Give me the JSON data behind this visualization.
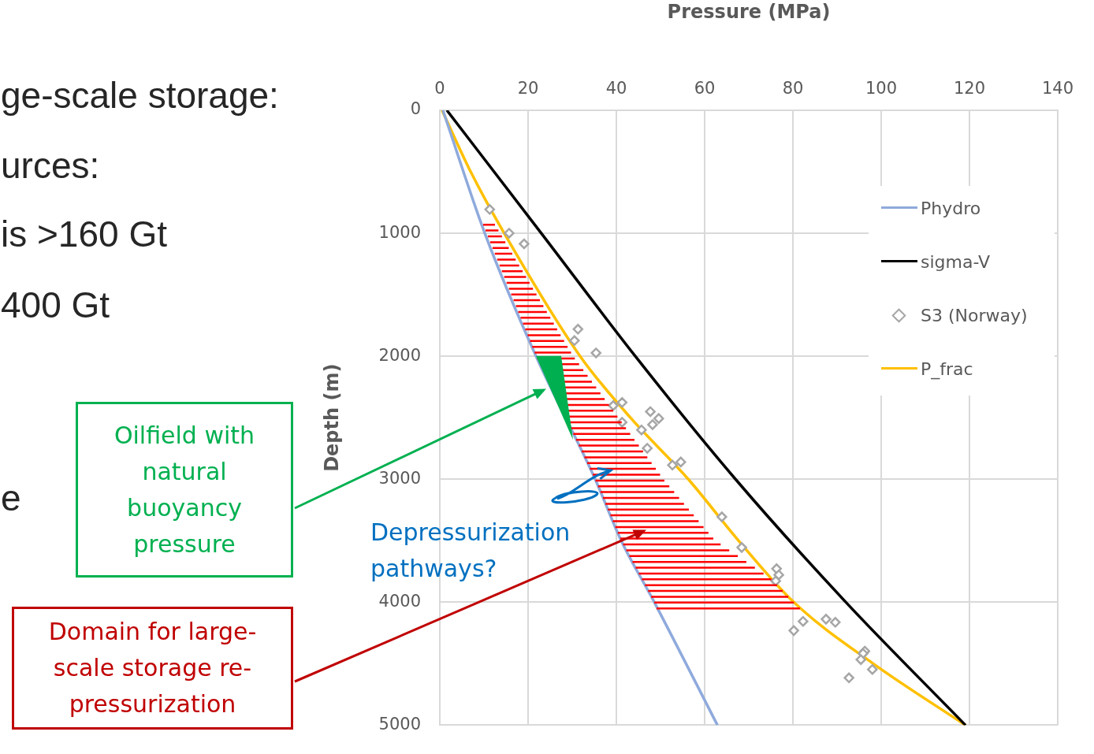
{
  "chart_data": {
    "type": "line",
    "xlabel": "Pressure (MPa)",
    "ylabel": "Depth (m)",
    "xlim": [
      0,
      140
    ],
    "xticks": [
      0,
      20,
      40,
      60,
      80,
      100,
      120,
      140
    ],
    "ylim": [
      5000,
      0
    ],
    "yticks": [
      0,
      1000,
      2000,
      3000,
      4000,
      5000
    ],
    "grid": true,
    "legend": "top right",
    "series": [
      {
        "name": "Phydro",
        "color": "#8faadc",
        "marker": "none",
        "x": [
          0.7,
          10.2,
          21.8,
          35.2,
          41.1,
          48.6,
          62.9
        ],
        "values": [
          0,
          1000,
          2000,
          3000,
          3500,
          4000,
          5000
        ]
      },
      {
        "name": "sigma-V",
        "color": "#000000",
        "marker": "none",
        "x": [
          1.6,
          23.0,
          44.3,
          67.0,
          92.0,
          119.1
        ],
        "values": [
          0,
          1000,
          2000,
          3000,
          4000,
          5000
        ]
      },
      {
        "name": "S3 (Norway)",
        "type": "scatter",
        "color": "#a6a6a6",
        "marker": "diamond",
        "x": [
          11.3,
          15.7,
          19.1,
          31.3,
          30.5,
          35.4,
          39.3,
          41.3,
          41.3,
          47.7,
          49.6,
          48.2,
          45.7,
          47.0,
          52.7,
          54.6,
          63.9,
          68.4,
          76.3,
          76.8,
          76.1,
          82.3,
          80.2,
          87.5,
          89.6,
          96.3,
          95.9,
          95.4,
          98.0,
          92.7
        ],
        "values": [
          806,
          999,
          1086,
          1780,
          1873,
          1973,
          2401,
          2376,
          2537,
          2450,
          2506,
          2556,
          2599,
          2748,
          2885,
          2860,
          3306,
          3555,
          3728,
          3778,
          3828,
          4156,
          4231,
          4138,
          4163,
          4398,
          4417,
          4467,
          4547,
          4615
        ]
      },
      {
        "name": "P_frac",
        "color": "#ffc000",
        "marker": "none",
        "x": [
          0.5,
          7.0,
          14.6,
          31.8,
          43.2,
          56.3,
          67.7,
          80.2,
          98.2,
          119.1
        ],
        "values": [
          0,
          500,
          1000,
          2000,
          2500,
          3000,
          3500,
          4000,
          4500,
          5000
        ]
      }
    ],
    "annotations": [
      "ge-scale storage:",
      "urces:",
      "is >160 Gt",
      "400 Gt",
      "e",
      "Oilfield with natural buoyancy pressure",
      "Depressurization pathways?",
      "Domain for large-scale storage re-pressurization"
    ]
  }
}
